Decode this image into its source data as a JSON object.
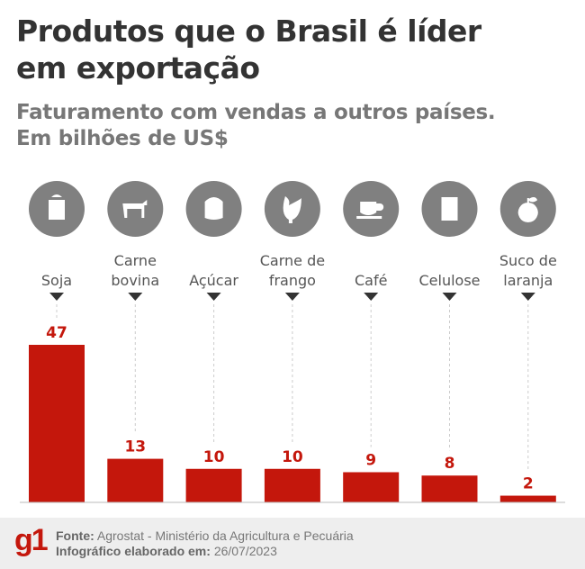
{
  "header": {
    "title_line1": "Produtos que o Brasil é líder",
    "title_line2": "em exportação",
    "subtitle_line1": "Faturamento com vendas a outros países.",
    "subtitle_line2": "Em bilhões de US$"
  },
  "chart_data": {
    "type": "bar",
    "title": "Produtos que o Brasil é líder em exportação",
    "ylabel": "Em bilhões de US$",
    "categories": [
      [
        "Soja"
      ],
      [
        "Carne",
        "bovina"
      ],
      [
        "Açúcar"
      ],
      [
        "Carne de",
        "frango"
      ],
      [
        "Café"
      ],
      [
        "Celulose"
      ],
      [
        "Suco de",
        "laranja"
      ]
    ],
    "icons": [
      "soy-sack-icon",
      "cow-icon",
      "sugar-sack-icon",
      "chicken-icon",
      "coffee-cup-icon",
      "notebook-paper-icon",
      "orange-icon"
    ],
    "values": [
      47,
      13,
      10,
      10,
      9,
      8,
      2
    ],
    "ylim": [
      0,
      50
    ],
    "bar_color": "#c4170c",
    "icon_bg_color": "#808080"
  },
  "footer": {
    "logo": "g1",
    "source_label": "Fonte:",
    "source_value": "Agrostat - Ministério da Agricultura e Pecuária",
    "date_label": "Infográfico elaborado em:",
    "date_value": "26/07/2023"
  }
}
